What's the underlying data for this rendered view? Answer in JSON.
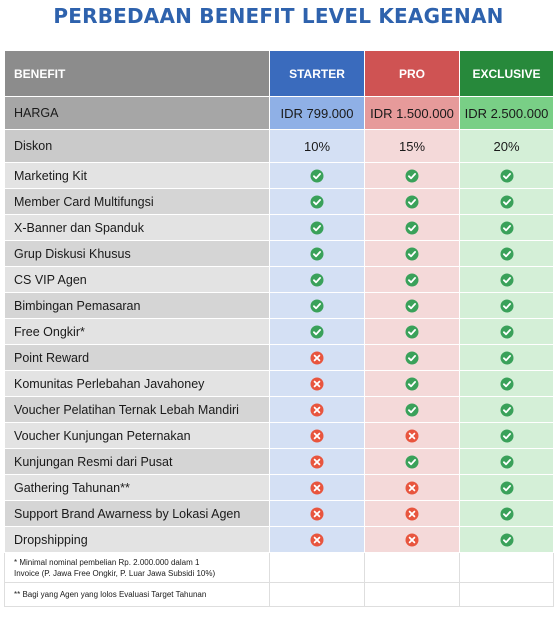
{
  "title": "PERBEDAAN BENEFIT LEVEL KEAGENAN",
  "header": {
    "benefit": "BENEFIT",
    "starter": "STARTER",
    "pro": "PRO",
    "exclusive": "EXCLUSIVE"
  },
  "price": {
    "label": "HARGA",
    "starter": "IDR 799.000",
    "pro": "IDR 1.500.000",
    "exclusive": "IDR 2.500.000"
  },
  "discount": {
    "label": "Diskon",
    "starter": "10%",
    "pro": "15%",
    "exclusive": "20%"
  },
  "rows": [
    {
      "label": "Marketing Kit",
      "starter": true,
      "pro": true,
      "exclusive": true
    },
    {
      "label": "Member Card Multifungsi",
      "starter": true,
      "pro": true,
      "exclusive": true
    },
    {
      "label": "X-Banner dan Spanduk",
      "starter": true,
      "pro": true,
      "exclusive": true
    },
    {
      "label": "Grup Diskusi Khusus",
      "starter": true,
      "pro": true,
      "exclusive": true
    },
    {
      "label": "CS VIP Agen",
      "starter": true,
      "pro": true,
      "exclusive": true
    },
    {
      "label": "Bimbingan Pemasaran",
      "starter": true,
      "pro": true,
      "exclusive": true
    },
    {
      "label": "Free Ongkir*",
      "starter": true,
      "pro": true,
      "exclusive": true
    },
    {
      "label": "Point Reward",
      "starter": false,
      "pro": true,
      "exclusive": true
    },
    {
      "label": "Komunitas Perlebahan Javahoney",
      "starter": false,
      "pro": true,
      "exclusive": true
    },
    {
      "label": "Voucher Pelatihan Ternak Lebah Mandiri",
      "starter": false,
      "pro": true,
      "exclusive": true
    },
    {
      "label": "Voucher Kunjungan Peternakan",
      "starter": false,
      "pro": false,
      "exclusive": true
    },
    {
      "label": "Kunjungan Resmi dari Pusat",
      "starter": false,
      "pro": true,
      "exclusive": true
    },
    {
      "label": "Gathering Tahunan**",
      "starter": false,
      "pro": false,
      "exclusive": true
    },
    {
      "label": "Support Brand Awarness by Lokasi Agen",
      "starter": false,
      "pro": false,
      "exclusive": true
    },
    {
      "label": "Dropshipping",
      "starter": false,
      "pro": false,
      "exclusive": true
    }
  ],
  "notes": {
    "note1_line1": "*    Minimal nominal pembelian Rp. 2.000.000 dalam 1",
    "note1_line2": "Invoice (P. Jawa Free Ongkir, P. Luar Jawa Subsidi 10%)",
    "note2": "**   Bagi yang Agen yang lolos Evaluasi Target Tahunan"
  },
  "colors": {
    "title": "#2e62ad",
    "check": "#3aa15a",
    "cross": "#e8553e"
  },
  "icons": {
    "yes": "check-circle-icon",
    "no": "x-circle-icon"
  }
}
